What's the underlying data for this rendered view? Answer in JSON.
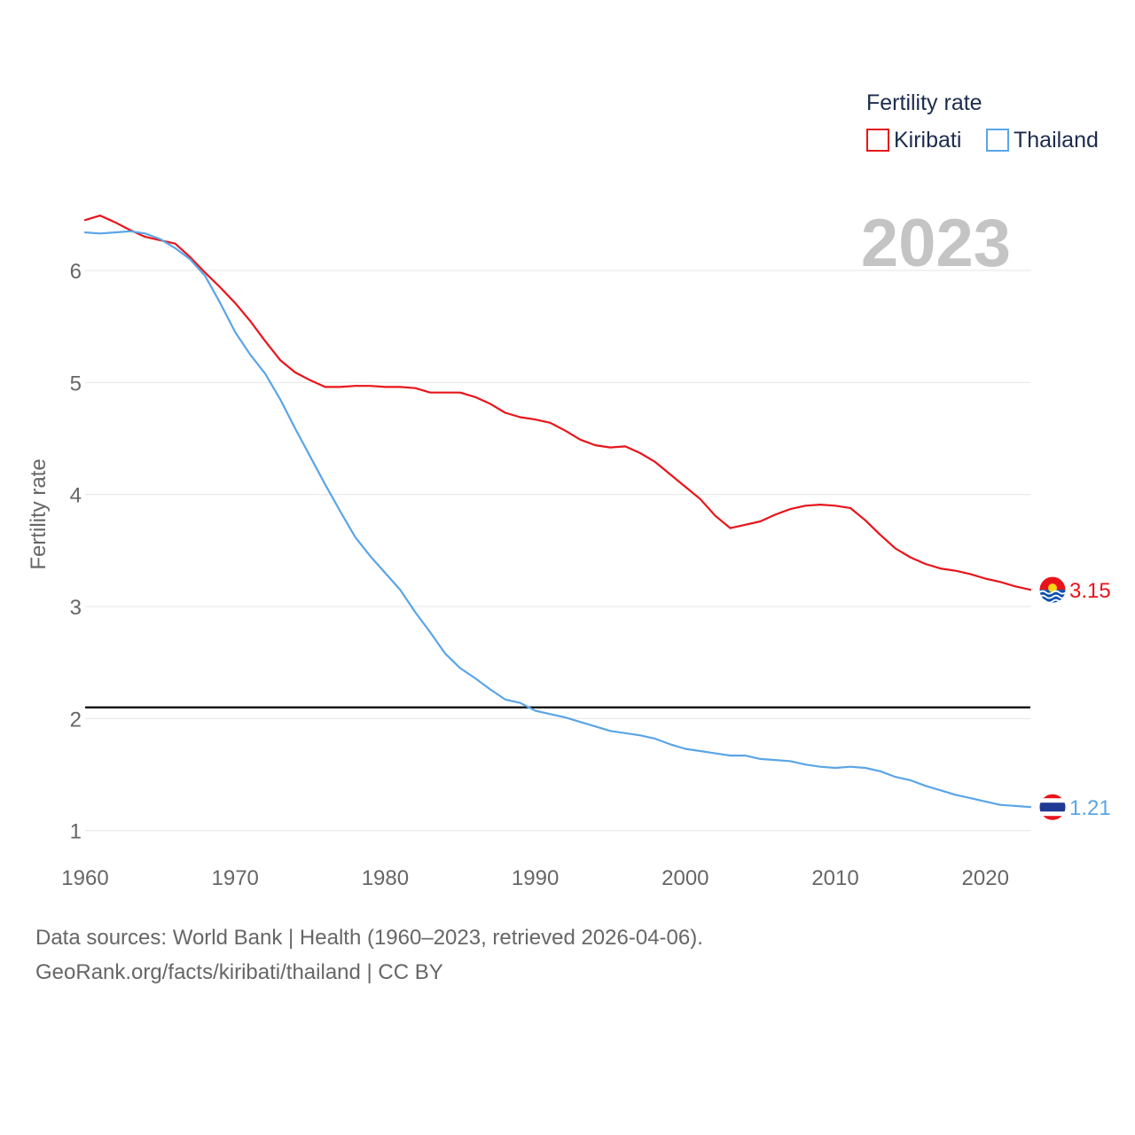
{
  "chart_data": {
    "type": "line",
    "ylabel": "Fertility rate",
    "year_label": "2023",
    "xlim": [
      1960,
      2023
    ],
    "ylim": [
      0.8,
      6.95
    ],
    "y_ticks": [
      {
        "value": 1,
        "label": "1"
      },
      {
        "value": 2,
        "label": "2"
      },
      {
        "value": 3,
        "label": "3"
      },
      {
        "value": 4,
        "label": "4"
      },
      {
        "value": 5,
        "label": "5"
      },
      {
        "value": 6,
        "label": "6"
      }
    ],
    "x_ticks": [
      {
        "value": 1960,
        "label": "1960"
      },
      {
        "value": 1970,
        "label": "1970"
      },
      {
        "value": 1980,
        "label": "1980"
      },
      {
        "value": 1990,
        "label": "1990"
      },
      {
        "value": 2000,
        "label": "2000"
      },
      {
        "value": 2010,
        "label": "2010"
      },
      {
        "value": 2020,
        "label": "2020"
      }
    ],
    "reference_line": {
      "value": 2.1,
      "color": "#000000"
    },
    "legend": {
      "title": "Fertility rate",
      "position": "top-right"
    },
    "x": [
      1960,
      1961,
      1962,
      1963,
      1964,
      1965,
      1966,
      1967,
      1968,
      1969,
      1970,
      1971,
      1972,
      1973,
      1974,
      1975,
      1976,
      1977,
      1978,
      1979,
      1980,
      1981,
      1982,
      1983,
      1984,
      1985,
      1986,
      1987,
      1988,
      1989,
      1990,
      1991,
      1992,
      1993,
      1994,
      1995,
      1996,
      1997,
      1998,
      1999,
      2000,
      2001,
      2002,
      2003,
      2004,
      2005,
      2006,
      2007,
      2008,
      2009,
      2010,
      2011,
      2012,
      2013,
      2014,
      2015,
      2016,
      2017,
      2018,
      2019,
      2020,
      2021,
      2022,
      2023
    ],
    "series": [
      {
        "name": "Kiribati",
        "color": "#e8141a",
        "end_label": "3.15",
        "values": [
          6.45,
          6.49,
          6.43,
          6.36,
          6.3,
          6.27,
          6.24,
          6.12,
          5.98,
          5.85,
          5.71,
          5.55,
          5.37,
          5.2,
          5.09,
          5.02,
          4.96,
          4.96,
          4.97,
          4.97,
          4.96,
          4.96,
          4.95,
          4.91,
          4.91,
          4.91,
          4.87,
          4.81,
          4.73,
          4.69,
          4.67,
          4.64,
          4.57,
          4.49,
          4.44,
          4.42,
          4.43,
          4.37,
          4.29,
          4.18,
          4.07,
          3.96,
          3.81,
          3.7,
          3.73,
          3.76,
          3.82,
          3.87,
          3.9,
          3.91,
          3.9,
          3.88,
          3.77,
          3.64,
          3.52,
          3.44,
          3.38,
          3.34,
          3.32,
          3.29,
          3.25,
          3.22,
          3.18,
          3.15
        ]
      },
      {
        "name": "Thailand",
        "color": "#5aa5e6",
        "end_label": "1.21",
        "values": [
          6.34,
          6.33,
          6.34,
          6.35,
          6.33,
          6.28,
          6.2,
          6.1,
          5.95,
          5.71,
          5.45,
          5.25,
          5.08,
          4.85,
          4.59,
          4.34,
          4.09,
          3.85,
          3.62,
          3.45,
          3.3,
          3.15,
          2.95,
          2.77,
          2.58,
          2.45,
          2.36,
          2.26,
          2.17,
          2.14,
          2.07,
          2.04,
          2.01,
          1.97,
          1.93,
          1.89,
          1.87,
          1.85,
          1.82,
          1.77,
          1.73,
          1.71,
          1.69,
          1.67,
          1.67,
          1.64,
          1.63,
          1.62,
          1.59,
          1.57,
          1.56,
          1.57,
          1.56,
          1.53,
          1.48,
          1.45,
          1.4,
          1.36,
          1.32,
          1.29,
          1.26,
          1.23,
          1.22,
          1.21
        ]
      }
    ]
  },
  "footer": {
    "line1": "Data sources: World Bank | Health (1960–2023, retrieved 2026-04-06).",
    "line2": "GeoRank.org/facts/kiribati/thailand | CC BY"
  }
}
